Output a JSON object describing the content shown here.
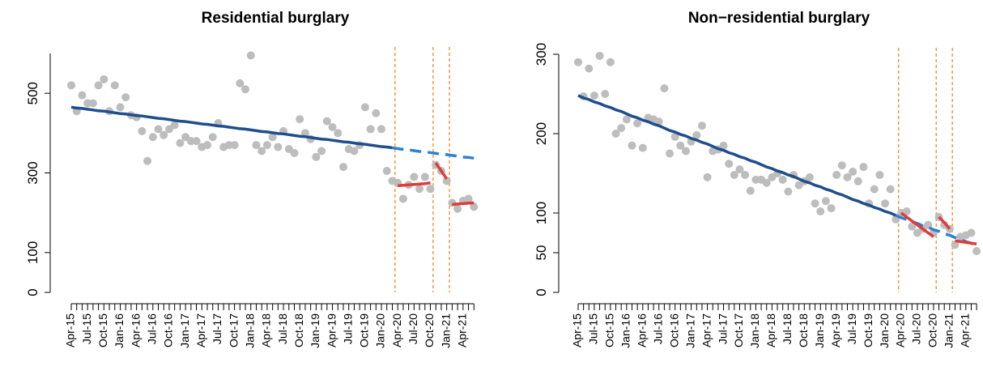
{
  "chart_data": [
    {
      "type": "scatter",
      "title": "Residential burglary",
      "categories": [
        "Apr-15",
        null,
        null,
        "Jul-15",
        null,
        null,
        "Oct-15",
        null,
        null,
        "Jan-16",
        null,
        null,
        "Apr-16",
        null,
        null,
        "Jul-16",
        null,
        null,
        "Oct-16",
        null,
        null,
        "Jan-17",
        null,
        null,
        "Apr-17",
        null,
        null,
        "Jul-17",
        null,
        null,
        "Oct-17",
        null,
        null,
        "Jan-18",
        null,
        null,
        "Apr-18",
        null,
        null,
        "Jul-18",
        null,
        null,
        "Oct-18",
        null,
        null,
        "Jan-19",
        null,
        null,
        "Apr-19",
        null,
        null,
        "Jul-19",
        null,
        null,
        "Oct-19",
        null,
        null,
        "Jan-20",
        null,
        null,
        "Apr-20",
        null,
        null,
        "Jul-20",
        null,
        null,
        "Oct-20",
        null,
        null,
        "Jan-21",
        null,
        null,
        "Apr-21",
        null,
        null
      ],
      "ylim": [
        0,
        600
      ],
      "yticks": [
        0,
        100,
        300,
        500
      ],
      "series": [
        {
          "style": "points",
          "color": "#bdbdbd",
          "values": [
            520,
            455,
            495,
            475,
            475,
            520,
            535,
            455,
            520,
            465,
            490,
            445,
            440,
            405,
            330,
            390,
            410,
            395,
            410,
            420,
            375,
            390,
            380,
            380,
            365,
            370,
            390,
            425,
            365,
            370,
            370,
            525,
            510,
            595,
            370,
            355,
            370,
            390,
            365,
            405,
            360,
            350,
            435,
            400,
            385,
            340,
            355,
            430,
            415,
            400,
            315,
            360,
            355,
            370,
            465,
            410,
            450,
            410,
            305,
            280,
            275,
            235,
            270,
            290,
            260,
            290,
            260,
            320,
            305,
            280,
            225,
            210,
            230,
            235,
            215
          ]
        },
        {
          "style": "line",
          "dash": false,
          "color": "#1f4e8c",
          "values": [
            465,
            463,
            462,
            460,
            458,
            456,
            455,
            453,
            451,
            449,
            448,
            446,
            444,
            443,
            441,
            439,
            437,
            436,
            434,
            432,
            430,
            429,
            427,
            425,
            423,
            422,
            420,
            418,
            417,
            415,
            413,
            411,
            410,
            408,
            406,
            404,
            403,
            401,
            399,
            398,
            396,
            394,
            392,
            391,
            389,
            387,
            385,
            384,
            382,
            380,
            378,
            377,
            375,
            373,
            372,
            370,
            368,
            366,
            365,
            363,
            null,
            null,
            null,
            null,
            null,
            null,
            null,
            null,
            null,
            null,
            null,
            null,
            null,
            null,
            null
          ]
        },
        {
          "style": "line",
          "dash": true,
          "color": "#2f80d0",
          "values": [
            null,
            null,
            null,
            null,
            null,
            null,
            null,
            null,
            null,
            null,
            null,
            null,
            null,
            null,
            null,
            null,
            null,
            null,
            null,
            null,
            null,
            null,
            null,
            null,
            null,
            null,
            null,
            null,
            null,
            null,
            null,
            null,
            null,
            null,
            null,
            null,
            null,
            null,
            null,
            null,
            null,
            null,
            null,
            null,
            null,
            null,
            null,
            null,
            null,
            null,
            null,
            null,
            null,
            null,
            null,
            null,
            null,
            null,
            null,
            363,
            361,
            359,
            358,
            356,
            354,
            353,
            351,
            349,
            347,
            346,
            344,
            342,
            340,
            339,
            337
          ]
        },
        {
          "style": "line",
          "dash": false,
          "event_lines": true,
          "color": "#e03a3a",
          "values": [
            null,
            null,
            null,
            null,
            null,
            null,
            null,
            null,
            null,
            null,
            null,
            null,
            null,
            null,
            null,
            null,
            null,
            null,
            null,
            null,
            null,
            null,
            null,
            null,
            null,
            null,
            null,
            null,
            null,
            null,
            null,
            null,
            null,
            null,
            null,
            null,
            null,
            null,
            null,
            null,
            null,
            null,
            null,
            null,
            null,
            null,
            null,
            null,
            null,
            null,
            null,
            null,
            null,
            null,
            null,
            null,
            null,
            null,
            null,
            null,
            268,
            269,
            270,
            271,
            272,
            273,
            275,
            null,
            null,
            null,
            221,
            222,
            223,
            224,
            225
          ]
        },
        {
          "style": "line",
          "dash": false,
          "event_lines": true,
          "color": "#e03a3a",
          "values": [
            null,
            null,
            null,
            null,
            null,
            null,
            null,
            null,
            null,
            null,
            null,
            null,
            null,
            null,
            null,
            null,
            null,
            null,
            null,
            null,
            null,
            null,
            null,
            null,
            null,
            null,
            null,
            null,
            null,
            null,
            null,
            null,
            null,
            null,
            null,
            null,
            null,
            null,
            null,
            null,
            null,
            null,
            null,
            null,
            null,
            null,
            null,
            null,
            null,
            null,
            null,
            null,
            null,
            null,
            null,
            null,
            null,
            null,
            null,
            null,
            null,
            null,
            null,
            null,
            null,
            null,
            null,
            325,
            305,
            285,
            null,
            null,
            null,
            null,
            null
          ]
        }
      ]
    },
    {
      "type": "scatter",
      "title": "Non−residential burglary",
      "categories": [
        "Apr-15",
        null,
        null,
        "Jul-15",
        null,
        null,
        "Oct-15",
        null,
        null,
        "Jan-16",
        null,
        null,
        "Apr-16",
        null,
        null,
        "Jul-16",
        null,
        null,
        "Oct-16",
        null,
        null,
        "Jan-17",
        null,
        null,
        "Apr-17",
        null,
        null,
        "Jul-17",
        null,
        null,
        "Oct-17",
        null,
        null,
        "Jan-18",
        null,
        null,
        "Apr-18",
        null,
        null,
        "Jul-18",
        null,
        null,
        "Oct-18",
        null,
        null,
        "Jan-19",
        null,
        null,
        "Apr-19",
        null,
        null,
        "Jul-19",
        null,
        null,
        "Oct-19",
        null,
        null,
        "Jan-20",
        null,
        null,
        "Apr-20",
        null,
        null,
        "Jul-20",
        null,
        null,
        "Oct-20",
        null,
        null,
        "Jan-21",
        null,
        null,
        "Apr-21",
        null,
        null
      ],
      "ylim": [
        0,
        300
      ],
      "yticks": [
        0,
        50,
        100,
        200,
        300
      ],
      "series": [
        {
          "style": "points",
          "color": "#bdbdbd",
          "values": [
            290,
            247,
            282,
            248,
            298,
            250,
            290,
            200,
            207,
            218,
            185,
            213,
            182,
            220,
            218,
            215,
            257,
            175,
            196,
            185,
            178,
            190,
            198,
            210,
            145,
            178,
            180,
            185,
            162,
            148,
            155,
            148,
            128,
            142,
            142,
            138,
            145,
            150,
            142,
            127,
            148,
            135,
            140,
            145,
            112,
            102,
            115,
            106,
            148,
            160,
            145,
            152,
            140,
            158,
            112,
            130,
            148,
            112,
            130,
            92,
            100,
            102,
            83,
            75,
            80,
            85,
            75,
            95,
            85,
            80,
            60,
            70,
            72,
            75,
            52
          ]
        },
        {
          "style": "line",
          "dash": false,
          "color": "#1f4e8c",
          "values": [
            248,
            245,
            243,
            240,
            238,
            235,
            233,
            230,
            228,
            225,
            222,
            220,
            217,
            215,
            212,
            210,
            207,
            204,
            202,
            199,
            197,
            194,
            192,
            189,
            187,
            184,
            181,
            179,
            176,
            174,
            171,
            169,
            166,
            164,
            161,
            158,
            156,
            153,
            151,
            148,
            146,
            143,
            140,
            138,
            135,
            133,
            130,
            128,
            125,
            123,
            120,
            117,
            115,
            112,
            110,
            107,
            105,
            102,
            100,
            97,
            null,
            null,
            null,
            null,
            null,
            null,
            null,
            null,
            null,
            null,
            null,
            null,
            null,
            null,
            null
          ]
        },
        {
          "style": "line",
          "dash": true,
          "color": "#2f80d0",
          "values": [
            null,
            null,
            null,
            null,
            null,
            null,
            null,
            null,
            null,
            null,
            null,
            null,
            null,
            null,
            null,
            null,
            null,
            null,
            null,
            null,
            null,
            null,
            null,
            null,
            null,
            null,
            null,
            null,
            null,
            null,
            null,
            null,
            null,
            null,
            null,
            null,
            null,
            null,
            null,
            null,
            null,
            null,
            null,
            null,
            null,
            null,
            null,
            null,
            null,
            null,
            null,
            null,
            null,
            null,
            null,
            null,
            null,
            null,
            null,
            97,
            94,
            92,
            89,
            87,
            84,
            82,
            79,
            77,
            74,
            72,
            69,
            67,
            64,
            62,
            59
          ]
        },
        {
          "style": "line",
          "dash": false,
          "event_lines": true,
          "color": "#e03a3a",
          "values": [
            null,
            null,
            null,
            null,
            null,
            null,
            null,
            null,
            null,
            null,
            null,
            null,
            null,
            null,
            null,
            null,
            null,
            null,
            null,
            null,
            null,
            null,
            null,
            null,
            null,
            null,
            null,
            null,
            null,
            null,
            null,
            null,
            null,
            null,
            null,
            null,
            null,
            null,
            null,
            null,
            null,
            null,
            null,
            null,
            null,
            null,
            null,
            null,
            null,
            null,
            null,
            null,
            null,
            null,
            null,
            null,
            null,
            null,
            null,
            null,
            100,
            95,
            90,
            85,
            80,
            75,
            70,
            null,
            null,
            null,
            65,
            64,
            63,
            62,
            61
          ]
        },
        {
          "style": "line",
          "dash": false,
          "event_lines": true,
          "color": "#e03a3a",
          "values": [
            null,
            null,
            null,
            null,
            null,
            null,
            null,
            null,
            null,
            null,
            null,
            null,
            null,
            null,
            null,
            null,
            null,
            null,
            null,
            null,
            null,
            null,
            null,
            null,
            null,
            null,
            null,
            null,
            null,
            null,
            null,
            null,
            null,
            null,
            null,
            null,
            null,
            null,
            null,
            null,
            null,
            null,
            null,
            null,
            null,
            null,
            null,
            null,
            null,
            null,
            null,
            null,
            null,
            null,
            null,
            null,
            null,
            null,
            null,
            null,
            null,
            null,
            null,
            null,
            null,
            null,
            null,
            95,
            88,
            80,
            null,
            null,
            null,
            null,
            null
          ]
        }
      ]
    }
  ]
}
